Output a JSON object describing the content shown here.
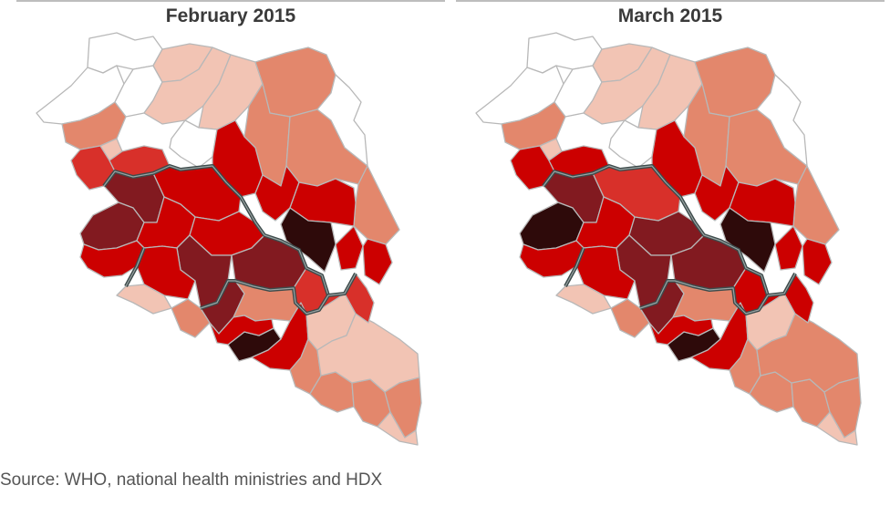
{
  "figure": {
    "source": "Source: WHO, national health ministries and HDX"
  },
  "legend_colors": {
    "none": "#ffffff",
    "very_low": "#f2c4b4",
    "low": "#e3876c",
    "medium": "#d8302a",
    "high": "#cc0000",
    "very_high": "#821a20",
    "extreme": "#2e0a0a"
  },
  "chart_data": [
    {
      "type": "choropleth",
      "title": "February 2015",
      "region": "Guinea, Sierra Leone, Liberia",
      "regions": {
        "g_nw1": "none",
        "g_nw2": "none",
        "g_nw3": "none",
        "g_n1": "very_low",
        "g_n2": "very_low",
        "g_n3": "very_low",
        "g_ne1": "low",
        "g_ne2": "low",
        "g_ne3": "low",
        "g_e1": "none",
        "g_e2": "low",
        "g_c1": "none",
        "g_w1": "low",
        "g_w2": "very_low",
        "g_sw1": "medium",
        "g_sw2": "medium",
        "g_c2": "high",
        "g_c3": "high",
        "g_s1": "high",
        "g_s2": "extreme",
        "g_s3": "high",
        "g_s4": "high",
        "sl_n": "high",
        "sl_nw": "very_high",
        "sl_w": "very_high",
        "sl_c": "high",
        "sl_e": "high",
        "sl_s": "high",
        "sl_se": "very_high",
        "sl_sw": "high",
        "sl_kail": "very_high",
        "sl_pen": "very_low",
        "lr_nw": "low",
        "lr_lofa": "very_high",
        "lr_bong": "low",
        "lr_nimba": "medium",
        "lr_mont": "extreme",
        "lr_marg": "high",
        "lr_gb": "high",
        "lr_rc": "low",
        "lr_gg": "very_low",
        "lr_sin": "low",
        "lr_rg": "low",
        "lr_mk": "very_low",
        "lr_gk": "low",
        "lr_bs": "medium",
        "lr_gbar": "very_low"
      }
    },
    {
      "type": "choropleth",
      "title": "March 2015",
      "region": "Guinea, Sierra Leone, Liberia",
      "regions": {
        "g_nw1": "none",
        "g_nw2": "none",
        "g_nw3": "none",
        "g_n1": "very_low",
        "g_n2": "very_low",
        "g_n3": "very_low",
        "g_ne1": "low",
        "g_ne2": "low",
        "g_ne3": "low",
        "g_e1": "none",
        "g_e2": "low",
        "g_c1": "none",
        "g_w1": "low",
        "g_w2": "very_low",
        "g_sw1": "high",
        "g_sw2": "high",
        "g_c2": "high",
        "g_c3": "high",
        "g_s1": "high",
        "g_s2": "extreme",
        "g_s3": "high",
        "g_s4": "high",
        "sl_n": "medium",
        "sl_nw": "very_high",
        "sl_w": "extreme",
        "sl_c": "high",
        "sl_e": "very_high",
        "sl_s": "high",
        "sl_se": "very_high",
        "sl_sw": "high",
        "sl_kail": "very_high",
        "sl_pen": "very_low",
        "lr_nw": "low",
        "lr_lofa": "very_high",
        "lr_bong": "low",
        "lr_nimba": "high",
        "lr_mont": "extreme",
        "lr_marg": "high",
        "lr_gb": "high",
        "lr_rc": "low",
        "lr_gg": "very_low",
        "lr_sin": "low",
        "lr_rg": "low",
        "lr_mk": "low",
        "lr_gk": "low",
        "lr_bs": "high",
        "lr_gbar": "very_low"
      }
    }
  ],
  "panels": [
    {
      "title": "February 2015"
    },
    {
      "title": "March 2015"
    }
  ]
}
